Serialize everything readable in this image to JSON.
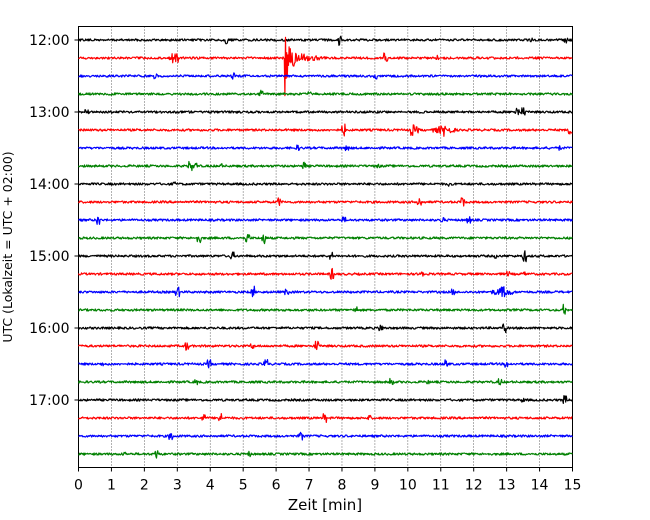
{
  "chart_data": {
    "type": "line",
    "title": "",
    "xlabel": "Zeit  [min]",
    "ylabel": "UTC (Lokalzeit = UTC + 02:00)",
    "xlim": [
      0,
      15
    ],
    "x_ticks": [
      "0",
      "1",
      "2",
      "3",
      "4",
      "5",
      "6",
      "7",
      "8",
      "9",
      "10",
      "11",
      "12",
      "13",
      "14",
      "15"
    ],
    "y_ticks": [
      "12:00",
      "13:00",
      "14:00",
      "15:00",
      "16:00",
      "17:00"
    ],
    "y_tick_rows": [
      0,
      4,
      8,
      12,
      16,
      20
    ],
    "grid": "vertical dotted at each minute",
    "trace_interval_minutes": 15,
    "first_trace": "12:00",
    "last_trace": "17:45",
    "color_cycle": [
      "#000000",
      "#ff0000",
      "#0000ff",
      "#008000"
    ],
    "events": [
      {
        "trace": "12:15",
        "x_min": 6.3,
        "amplitude": "large",
        "note": "spike extends into 12:00 and beyond"
      },
      {
        "trace": "13:15",
        "x_min": 11.1,
        "amplitude": "small"
      },
      {
        "trace": "15:30",
        "x_min": 12.9,
        "amplitude": "small"
      }
    ]
  }
}
